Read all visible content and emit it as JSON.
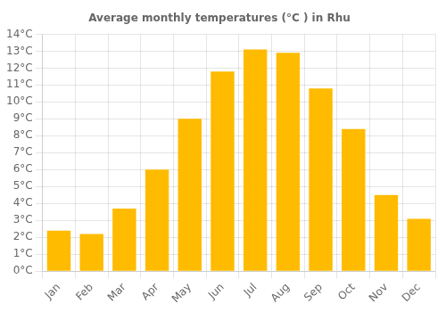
{
  "chart_data": {
    "type": "bar",
    "title": "Average monthly temperatures (°C ) in Rhu",
    "categories": [
      "Jan",
      "Feb",
      "Mar",
      "Apr",
      "May",
      "Jun",
      "Jul",
      "Aug",
      "Sep",
      "Oct",
      "Nov",
      "Dec"
    ],
    "values": [
      2.4,
      2.2,
      3.7,
      6.0,
      9.0,
      11.8,
      13.1,
      12.9,
      10.8,
      8.4,
      4.5,
      3.1
    ],
    "color": "#FFBB00",
    "ylim": [
      0,
      14
    ],
    "yticks": [
      {
        "value": 0,
        "label": "0°C"
      },
      {
        "value": 1,
        "label": "1°C"
      },
      {
        "value": 2,
        "label": "2°C"
      },
      {
        "value": 3,
        "label": "3°C"
      },
      {
        "value": 4,
        "label": "4°C"
      },
      {
        "value": 5,
        "label": "5°C"
      },
      {
        "value": 6,
        "label": "6°C"
      },
      {
        "value": 7,
        "label": "7°C"
      },
      {
        "value": 8,
        "label": "8°C"
      },
      {
        "value": 9,
        "label": "9°C"
      },
      {
        "value": 10,
        "label": "10°C"
      },
      {
        "value": 11,
        "label": "11°C"
      },
      {
        "value": 12,
        "label": "12°C"
      },
      {
        "value": 13,
        "label": "13°C"
      },
      {
        "value": 14,
        "label": "14°C"
      }
    ],
    "grid": true
  }
}
